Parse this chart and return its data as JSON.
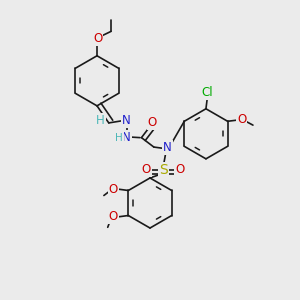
{
  "bg_color": "#ebebeb",
  "bond_color": "#1a1a1a",
  "bond_width": 1.2,
  "dbo": 0.018,
  "figsize": [
    3.0,
    3.0
  ],
  "dpi": 100,
  "ring_r": 0.085,
  "colors": {
    "C": "#1a1a1a",
    "N": "#2020cc",
    "O": "#cc0000",
    "S": "#aaaa00",
    "Cl": "#00aa00",
    "H_imine": "#4db8b8"
  }
}
